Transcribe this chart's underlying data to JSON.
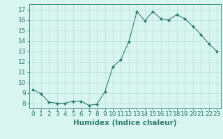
{
  "x": [
    0,
    1,
    2,
    3,
    4,
    5,
    6,
    7,
    8,
    9,
    10,
    11,
    12,
    13,
    14,
    15,
    16,
    17,
    18,
    19,
    20,
    21,
    22,
    23
  ],
  "y": [
    9.3,
    8.9,
    8.1,
    8.0,
    8.0,
    8.2,
    8.2,
    7.8,
    7.9,
    9.1,
    11.5,
    12.2,
    13.9,
    16.8,
    15.9,
    16.8,
    16.1,
    16.0,
    16.5,
    16.1,
    15.4,
    14.6,
    13.7,
    13.0
  ],
  "line_color": "#2e7d6e",
  "marker": "D",
  "marker_size": 2,
  "background_color": "#d8f5f0",
  "grid_color": "#b8ddd8",
  "xlabel": "Humidex (Indice chaleur)",
  "xlim": [
    -0.5,
    23.5
  ],
  "ylim": [
    7.5,
    17.5
  ],
  "yticks": [
    8,
    9,
    10,
    11,
    12,
    13,
    14,
    15,
    16,
    17
  ],
  "xticks": [
    0,
    1,
    2,
    3,
    4,
    5,
    6,
    7,
    8,
    9,
    10,
    11,
    12,
    13,
    14,
    15,
    16,
    17,
    18,
    19,
    20,
    21,
    22,
    23
  ],
  "xtick_labels": [
    "0",
    "1",
    "2",
    "3",
    "4",
    "5",
    "6",
    "7",
    "8",
    "9",
    "10",
    "11",
    "12",
    "13",
    "14",
    "15",
    "16",
    "17",
    "18",
    "19",
    "20",
    "21",
    "22",
    "23"
  ],
  "tick_color": "#2e7d6e",
  "spine_color": "#2e7d6e",
  "font_color": "#2e7d6e",
  "xlabel_fontsize": 7.5,
  "tick_fontsize": 6.5,
  "linewidth": 0.8
}
